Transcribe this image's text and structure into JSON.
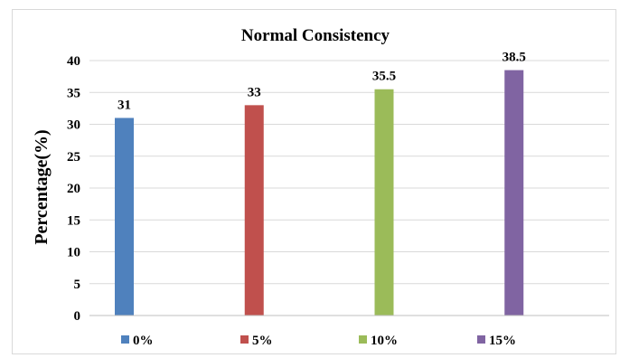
{
  "chart_data": {
    "type": "bar",
    "title": "Normal Consistency",
    "xlabel": "",
    "ylabel": "Percentage(%)",
    "ylim": [
      0,
      40
    ],
    "yticks": [
      0,
      5,
      10,
      15,
      20,
      25,
      30,
      35,
      40
    ],
    "grid": true,
    "legend_position": "bottom",
    "categories": [
      "0%",
      "5%",
      "10%",
      "15%"
    ],
    "values": [
      31,
      33,
      35.5,
      38.5
    ],
    "data_labels": [
      "31",
      "33",
      "35.5",
      "38.5"
    ],
    "colors": [
      "#4f81bd",
      "#c0504d",
      "#9bbb59",
      "#8064a2"
    ]
  }
}
